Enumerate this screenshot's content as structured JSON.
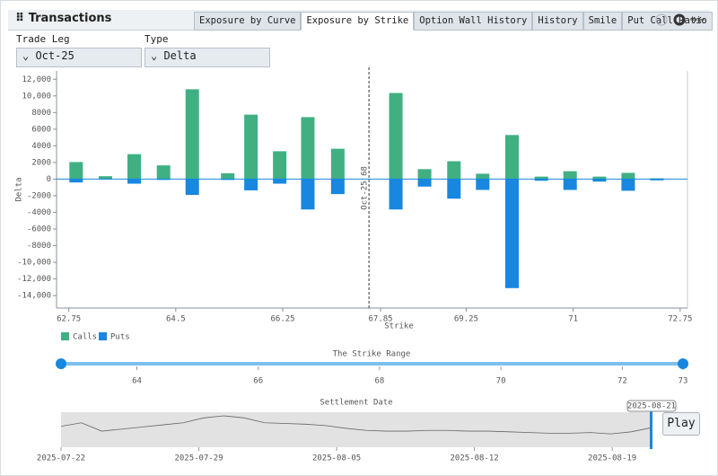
{
  "header": {
    "title": "Transactions",
    "tabs": [
      "Exposure by Curve",
      "Exposure by Strike",
      "Option Wall History",
      "History",
      "Smile",
      "Put Call Ratio"
    ],
    "active_tab": 1
  },
  "controls": {
    "trade_leg": {
      "label": "Trade Leg",
      "value": "Oct-25"
    },
    "type": {
      "label": "Type",
      "value": "Delta"
    }
  },
  "chart_data": {
    "type": "bar",
    "y_label": "Delta",
    "x_label": "Strike",
    "x": [
      62.87,
      63.35,
      63.82,
      64.3,
      64.77,
      65.35,
      65.73,
      66.2,
      66.66,
      67.15,
      68.1,
      68.57,
      69.05,
      69.52,
      70.0,
      70.48,
      70.95,
      71.43,
      71.9,
      72.37
    ],
    "series": [
      {
        "name": "Calls",
        "color": "#40b083",
        "values": [
          2050,
          350,
          3000,
          1650,
          10800,
          700,
          7750,
          3350,
          7450,
          3650,
          10350,
          1200,
          2150,
          650,
          5300,
          300,
          950,
          300,
          750,
          100
        ]
      },
      {
        "name": "Puts",
        "color": "#1787e0",
        "values": [
          -400,
          -50,
          -550,
          -100,
          -1900,
          -100,
          -1350,
          -550,
          -3650,
          -1800,
          -3650,
          -900,
          -2350,
          -1300,
          -13100,
          -200,
          -1300,
          -300,
          -1400,
          -150
        ]
      }
    ],
    "xlim": [
      62.55,
      72.87
    ],
    "xticks": [
      62.75,
      64.5,
      66.25,
      67.85,
      69.25,
      71,
      72.75
    ],
    "ylim": [
      -15500,
      13000
    ],
    "yticks": [
      {
        "value": 12000,
        "label": "12,000"
      },
      {
        "value": 10000,
        "label": "10,000"
      },
      8000,
      6000,
      4000,
      2000,
      0,
      -2000,
      -4000,
      -6000,
      -8000,
      {
        "value": -10000,
        "label": "-10,000"
      },
      {
        "value": -12000,
        "label": "-12,000"
      },
      {
        "value": -14000,
        "label": "-14,000"
      }
    ],
    "annotation": {
      "label": "Oct-25 68",
      "x": 67.66
    },
    "legend": "bottom-left"
  },
  "strike_range": {
    "title": "The Strike Range",
    "min": 62.75,
    "max": 73,
    "low": 62.75,
    "high": 73,
    "ticks": [
      64,
      66,
      68,
      70,
      72,
      73
    ]
  },
  "settlement": {
    "title": "Settlement Date",
    "start": "2025-07-22",
    "end": "2025-08-21",
    "selected": "2025-08-21",
    "ticks": [
      "2025-07-22",
      "2025-07-29",
      "2025-08-05",
      "2025-08-12",
      "2025-08-19"
    ],
    "trend": [
      25,
      30,
      18,
      21,
      24,
      27,
      30,
      37,
      40,
      37,
      30,
      29,
      28,
      26,
      22,
      19,
      18,
      18,
      19,
      19,
      18,
      18,
      17,
      16,
      15,
      15,
      16,
      14,
      17,
      23
    ],
    "button": "Play"
  }
}
